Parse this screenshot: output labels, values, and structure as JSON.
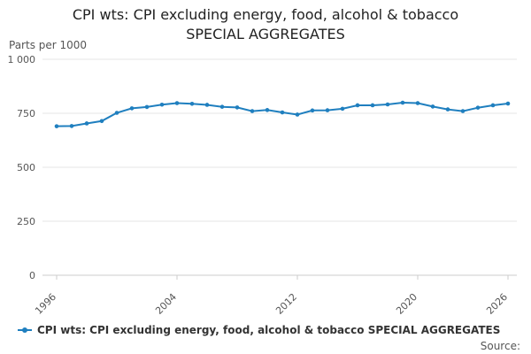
{
  "chart_data": {
    "type": "line",
    "title_line1": "CPI wts: CPI excluding energy, food, alcohol & tobacco",
    "title_line2": "SPECIAL AGGREGATES",
    "ylabel": "Parts per 1000",
    "y_ticks": [
      "0",
      "250",
      "500",
      "750",
      "1 000"
    ],
    "y_tick_values": [
      0,
      250,
      500,
      750,
      1000
    ],
    "x_ticks": [
      "1996",
      "2004",
      "2012",
      "2020",
      "2026"
    ],
    "x_tick_values": [
      1996,
      2004,
      2012,
      2020,
      2026
    ],
    "xlim": [
      1996,
      2026
    ],
    "ylim": [
      0,
      1000
    ],
    "grid": true,
    "legend_position": "bottom",
    "color": "#1f7fbf",
    "series": [
      {
        "name": "CPI wts: CPI excluding energy, food, alcohol & tobacco SPECIAL AGGREGATES",
        "x": [
          1996,
          1997,
          1998,
          1999,
          2000,
          2001,
          2002,
          2003,
          2004,
          2005,
          2006,
          2007,
          2008,
          2009,
          2010,
          2011,
          2012,
          2013,
          2014,
          2015,
          2016,
          2017,
          2018,
          2019,
          2020,
          2021,
          2022,
          2023,
          2024,
          2025,
          2026
        ],
        "values": [
          690,
          691,
          703,
          714,
          752,
          773,
          779,
          790,
          797,
          794,
          789,
          780,
          777,
          760,
          765,
          754,
          744,
          763,
          764,
          771,
          787,
          787,
          791,
          799,
          797,
          781,
          768,
          760,
          776,
          787,
          795
        ]
      }
    ]
  },
  "source_label": "Source:"
}
